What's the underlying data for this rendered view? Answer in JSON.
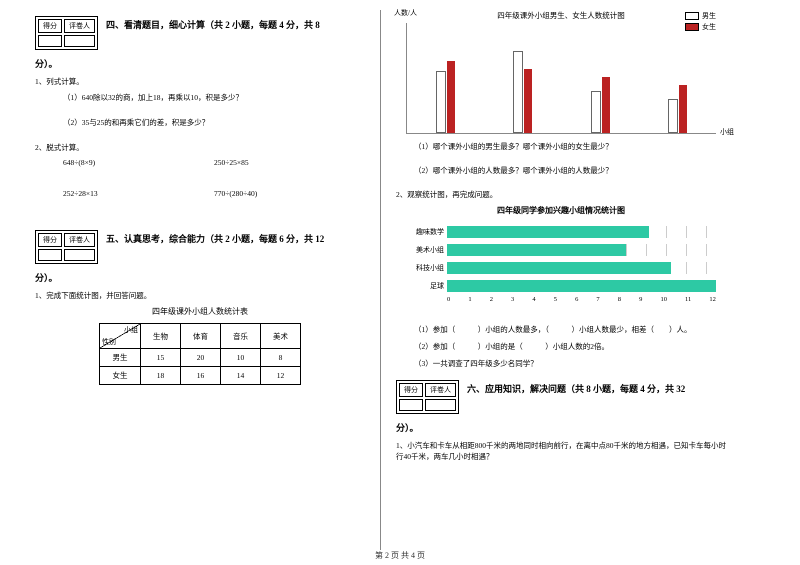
{
  "sec4": {
    "score": "得分",
    "grader": "评卷人",
    "title": "四、看清题目，细心计算（共 2 小题，每题 4 分，共 8",
    "title2": "分）。",
    "q1": "1、列式计算。",
    "q1a": "（1）640除以32的商，加上18，再乘以10，积是多少？",
    "q1b": "（2）35与25的和再乘它们的差，积是多少？",
    "q2": "2、脱式计算。",
    "c1": "648÷(8×9)",
    "c2": "250÷25×85",
    "c3": "252÷28×13",
    "c4": "770÷(280÷40)"
  },
  "sec5": {
    "score": "得分",
    "grader": "评卷人",
    "title": "五、认真思考，综合能力（共 2 小题，每题 6 分，共 12",
    "title2": "分）。",
    "q1": "1、完成下面统计图，并回答问题。",
    "table_title": "四年级课外小组人数统计表",
    "th_group": "小组",
    "th_sex": "性别",
    "cols": [
      "生物",
      "体育",
      "音乐",
      "美术"
    ],
    "row_boy": "男生",
    "row_girl": "女生",
    "boys": [
      "15",
      "20",
      "10",
      "8"
    ],
    "girls": [
      "18",
      "16",
      "14",
      "12"
    ]
  },
  "right": {
    "chart_title": "四年级课外小组男生、女生人数统计图",
    "y_label": "人数/人",
    "x_label": "小组",
    "legend_boy": "男生",
    "legend_girl": "女生",
    "q1": "（1）哪个课外小组的男生最多？哪个课外小组的女生最少？",
    "q2": "（2）哪个课外小组的人数最多？哪个课外小组的人数最少？",
    "q3": "2、观察统计图，再完成问题。",
    "hchart_title": "四年级同学参加兴趣小组情况统计图",
    "hlabels": [
      "趣味数学",
      "美术小组",
      "科技小组",
      "足球"
    ],
    "hvalues": [
      9,
      8,
      10,
      12
    ],
    "haxis": [
      "0",
      "1",
      "2",
      "3",
      "4",
      "5",
      "6",
      "7",
      "8",
      "9",
      "10",
      "11",
      "12"
    ],
    "hq1": "（1）参加（　　　）小组的人数最多，（　　　）小组人数最少，相差（　　）人。",
    "hq2": "（2）参加（　　　）小组的是（　　　）小组人数的2倍。",
    "hq3": "（3）一共调查了四年级多少名同学？"
  },
  "sec6": {
    "score": "得分",
    "grader": "评卷人",
    "title": "六、应用知识，解决问题（共 8 小题，每题 4 分，共 32",
    "title2": "分）。",
    "q1": "1、小汽车和卡车从相距800千米的两地同时相向前行，在离中点80千米的地方相遇，已知卡车每小时行40千米，两车几小时相遇？"
  },
  "footer": "第 2 页 共 4 页",
  "bars": {
    "boys": [
      15,
      20,
      10,
      8
    ],
    "girls": [
      18,
      16,
      14,
      12
    ]
  }
}
